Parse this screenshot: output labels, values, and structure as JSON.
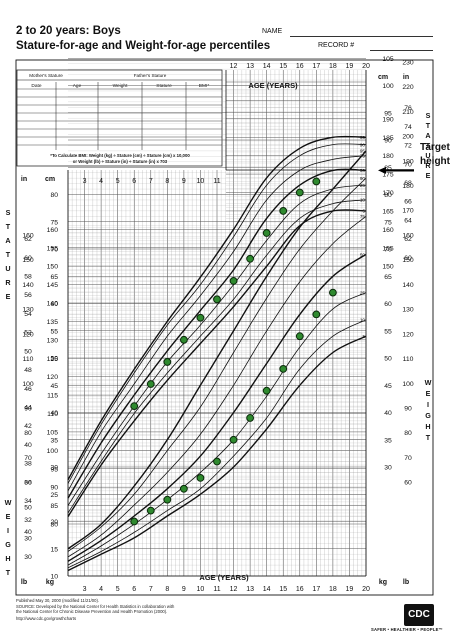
{
  "header": {
    "title": "2 to 20 years: Boys",
    "subtitle": "Stature-for-age and Weight-for-age percentiles",
    "name_label": "NAME",
    "record_label": "RECORD #"
  },
  "table": {
    "mother_label": "Mother's Stature",
    "father_label": "Father's Stature",
    "columns": [
      "Date",
      "Age",
      "Weight",
      "Stature",
      "BMI*"
    ],
    "bmi_note_1": "*To Calculate BMI: Weight (kg) ÷ Stature (cm) ÷ Stature (cm) x 10,000",
    "bmi_note_2": "or Weight (lb) ÷ Stature (in) ÷ Stature (in) x 703"
  },
  "labels": {
    "age_years": "AGE (YEARS)",
    "in": "in",
    "cm": "cm",
    "lb": "lb",
    "kg": "kg",
    "stature_vertical": "STATURE",
    "weight_vertical": "WEIGHT",
    "target_line1": "Target",
    "target_line2": "height"
  },
  "footer": {
    "line1": "Published May 30, 2000 (modified 11/21/00).",
    "line2": "SOURCE: Developed by the National Center for Health Statistics in collaboration with",
    "line3": "the National Center for Chronic Disease Prevention and Health Promotion (2000).",
    "line4": "http://www.cdc.gov/growthcharts",
    "logo": "CDC",
    "tagline": "SAFER • HEALTHIER • PEOPLE™"
  },
  "chart_data": {
    "type": "line",
    "title": "Stature-for-age and Weight-for-age percentiles",
    "xlabel": "AGE (YEARS)",
    "xlim": [
      2,
      20
    ],
    "x_ticks": [
      2,
      3,
      4,
      5,
      6,
      7,
      8,
      9,
      10,
      11,
      12,
      13,
      14,
      15,
      16,
      17,
      18,
      19,
      20
    ],
    "x_ticks_top": [
      12,
      13,
      14,
      15,
      16,
      17,
      18,
      19,
      20
    ],
    "percentile_labels": [
      "5",
      "10",
      "25",
      "50",
      "75",
      "90",
      "95"
    ],
    "stature": {
      "ylabel": "STATURE",
      "unit": "cm",
      "ylim": [
        80,
        200
      ],
      "cm_ticks_left": [
        80,
        85,
        90,
        95,
        100,
        105,
        110,
        115,
        120,
        125,
        130,
        135,
        140,
        145,
        150,
        155,
        160
      ],
      "cm_ticks_right": [
        150,
        155,
        160,
        165,
        170,
        175,
        180,
        185,
        190
      ],
      "in_ticks_left": [
        30,
        32,
        34,
        36,
        38,
        40,
        42,
        44,
        46,
        48,
        50,
        52,
        54,
        56,
        58,
        60,
        62
      ],
      "in_ticks_right": [
        60,
        62,
        64,
        66,
        68,
        70,
        72,
        74,
        76
      ],
      "target_height_cm": 176,
      "percentile_curves": {
        "ages": [
          2,
          4,
          6,
          8,
          10,
          12,
          14,
          16,
          18,
          20
        ],
        "p5": [
          82,
          96,
          108,
          119,
          129,
          139,
          150,
          161,
          165,
          165
        ],
        "p10": [
          83,
          97,
          110,
          121,
          131,
          141,
          153,
          163,
          167,
          168
        ],
        "p25": [
          85,
          99,
          112,
          124,
          134,
          145,
          157,
          167,
          171,
          172
        ],
        "p50": [
          87,
          102,
          115,
          127,
          138,
          149,
          163,
          172,
          176,
          176
        ],
        "p75": [
          89,
          105,
          118,
          131,
          142,
          154,
          168,
          176,
          179,
          180
        ],
        "p90": [
          91,
          107,
          121,
          134,
          145,
          158,
          172,
          180,
          183,
          183
        ],
        "p95": [
          92,
          108,
          122,
          135,
          147,
          160,
          174,
          182,
          185,
          185
        ]
      },
      "measurements": {
        "age": [
          6,
          7,
          8,
          9,
          10,
          11,
          12,
          13,
          14,
          15,
          16,
          17
        ],
        "value": [
          112,
          118,
          124,
          130,
          136,
          141,
          146,
          152,
          159,
          165,
          170,
          173
        ]
      }
    },
    "weight": {
      "ylabel": "WEIGHT",
      "unit": "kg",
      "ylim": [
        10,
        105
      ],
      "kg_ticks_left": [
        10,
        15,
        20,
        25,
        30,
        35,
        40,
        45,
        50,
        55,
        60,
        65,
        70,
        75,
        80
      ],
      "kg_ticks_right": [
        30,
        35,
        40,
        45,
        50,
        55,
        60,
        65,
        70,
        75,
        80,
        85,
        90,
        95,
        100,
        105
      ],
      "lb_ticks_left": [
        30,
        40,
        50,
        60,
        70,
        80,
        90,
        100,
        110,
        120,
        130,
        140,
        150,
        160
      ],
      "lb_ticks_right": [
        60,
        70,
        80,
        90,
        100,
        110,
        120,
        130,
        140,
        150,
        160,
        170,
        180,
        190,
        200,
        210,
        220,
        230
      ],
      "percentile_curves": {
        "ages": [
          2,
          4,
          6,
          8,
          10,
          12,
          14,
          16,
          18,
          20
        ],
        "p5": [
          11,
          14,
          17,
          21,
          25,
          30,
          37,
          45,
          51,
          54
        ],
        "p10": [
          11.5,
          14.5,
          18,
          22,
          26,
          32,
          39,
          48,
          54,
          57
        ],
        "p25": [
          12,
          15.5,
          19.5,
          24,
          29,
          35,
          43,
          52,
          59,
          62
        ],
        "p50": [
          12.7,
          16.5,
          21,
          26,
          32,
          40,
          49,
          58,
          65,
          69
        ],
        "p75": [
          13.5,
          17.5,
          23,
          29,
          36,
          45,
          55,
          64,
          71,
          76
        ],
        "p90": [
          14.5,
          19,
          25,
          33,
          41,
          51,
          61,
          70,
          77,
          83
        ],
        "p95": [
          15,
          19.5,
          26.5,
          35,
          45,
          55,
          65,
          74,
          81,
          88
        ]
      },
      "measurements": {
        "age": [
          6,
          7,
          8,
          9,
          10,
          11,
          12,
          13,
          14,
          15,
          16,
          17,
          18
        ],
        "value": [
          20,
          22,
          24,
          26,
          28,
          31,
          35,
          39,
          44,
          48,
          54,
          58,
          62
        ]
      }
    }
  },
  "colors": {
    "grid": "#9a9a9a",
    "curve": "#111111",
    "dot_fill": "#2f8a2f",
    "dot_stroke": "#0b2a0b"
  }
}
